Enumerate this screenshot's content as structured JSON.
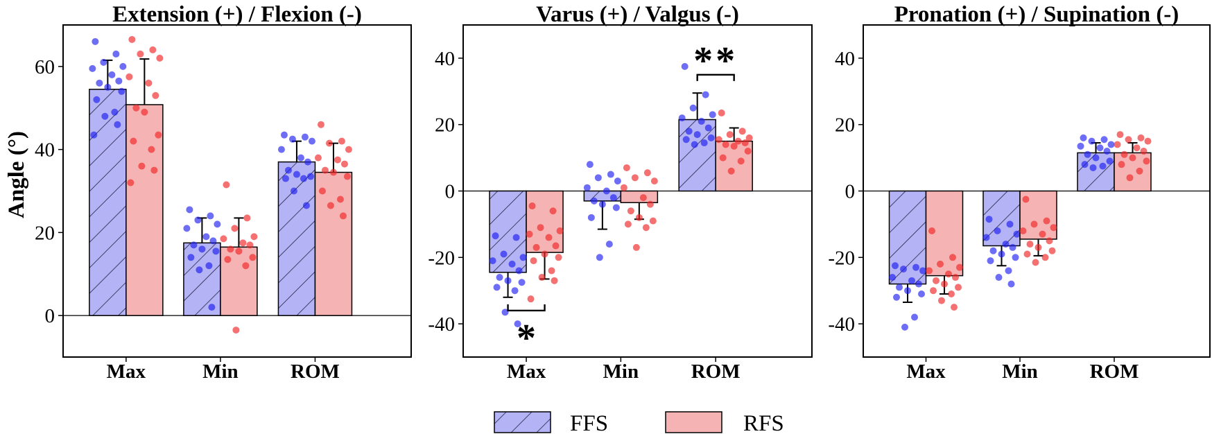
{
  "colors": {
    "ffs_fill": "#b3b3f5",
    "rfs_fill": "#f5b3b3",
    "ffs_dot": "#1f1ff0",
    "rfs_dot": "#f02525",
    "edge": "#000000"
  },
  "legend": [
    {
      "name": "FFS",
      "pattern": "hatched"
    },
    {
      "name": "RFS",
      "pattern": "solid"
    }
  ],
  "chart_data": [
    {
      "type": "bar",
      "title": "Extension (+) / Flexion (-)",
      "ylabel": "Angle (°)",
      "xlabel": "",
      "ylim": [
        -10,
        70
      ],
      "yticks": [
        0,
        20,
        40,
        60
      ],
      "categories": [
        "Max",
        "Min",
        "ROM"
      ],
      "series": [
        {
          "name": "FFS",
          "values": [
            54.5,
            17.5,
            37
          ],
          "errors": [
            7,
            6,
            5
          ],
          "points": [
            [
              66,
              63,
              61,
              60,
              59.5,
              58,
              56.5,
              56,
              55,
              54,
              52,
              49,
              48,
              46,
              43.5
            ],
            [
              25.5,
              24,
              23,
              22,
              21,
              19,
              18,
              17,
              16,
              15.5,
              14,
              12,
              11,
              2
            ],
            [
              43.5,
              43,
              42.5,
              42,
              40,
              38,
              37,
              35,
              34,
              33.5,
              33,
              33,
              30,
              26.5
            ]
          ]
        },
        {
          "name": "RFS",
          "values": [
            50.8,
            16.5,
            34.5
          ],
          "errors": [
            11,
            7,
            7
          ],
          "points": [
            [
              66.5,
              64,
              63,
              62,
              57.5,
              56,
              53,
              50,
              49,
              43.5,
              42,
              40,
              36,
              35,
              32
            ],
            [
              31.5,
              23.5,
              21,
              19,
              18.5,
              17.5,
              17,
              16,
              15.5,
              14,
              13.5,
              12,
              -3.5
            ],
            [
              46,
              42,
              41.5,
              40,
              38,
              37.5,
              36.5,
              35,
              34.5,
              33.5,
              30,
              28,
              26.5,
              24
            ]
          ]
        }
      ],
      "significance": []
    },
    {
      "type": "bar",
      "title": "Varus (+) / Valgus (-)",
      "xlabel": "",
      "ylim": [
        -50,
        50
      ],
      "yticks": [
        -40,
        -20,
        0,
        20,
        40
      ],
      "categories": [
        "Max",
        "Min",
        "ROM"
      ],
      "series": [
        {
          "name": "FFS",
          "values": [
            -24.5,
            -3,
            21.5
          ],
          "errors": [
            7.5,
            8.5,
            8
          ],
          "points": [
            [
              -13.5,
              -14,
              -19,
              -20,
              -21,
              -22,
              -24,
              -26,
              -27,
              -27.5,
              -29,
              -30,
              -36.5,
              -40
            ],
            [
              8,
              5,
              4,
              3,
              1,
              0,
              -2,
              -3,
              -4,
              -5,
              -8,
              -16,
              -20
            ],
            [
              37.5,
              29,
              25,
              23,
              22,
              21,
              19,
              18,
              17,
              16,
              15.5,
              14.5,
              14
            ]
          ]
        },
        {
          "name": "RFS",
          "values": [
            -18.5,
            -3.5,
            15
          ],
          "errors": [
            8,
            5,
            4
          ],
          "points": [
            [
              -4.5,
              -6,
              -11,
              -12,
              -13,
              -14,
              -16.5,
              -17,
              -19,
              -20,
              -21,
              -24,
              -26,
              -27,
              -32.5
            ],
            [
              7,
              5.5,
              4,
              3,
              1,
              -2,
              -4,
              -6,
              -8,
              -9,
              -10,
              -11,
              -17
            ],
            [
              23.5,
              18,
              17,
              16,
              15.5,
              15,
              14.5,
              14,
              13.5,
              12,
              10,
              9,
              6
            ]
          ]
        }
      ],
      "significance": [
        {
          "category": "Max",
          "label": "*",
          "position": "below"
        },
        {
          "category": "ROM",
          "label": "**",
          "position": "above"
        }
      ]
    },
    {
      "type": "bar",
      "title": "Pronation (+) / Supination (-)",
      "xlabel": "",
      "ylim": [
        -50,
        50
      ],
      "yticks": [
        -40,
        -20,
        0,
        20,
        40
      ],
      "categories": [
        "Max",
        "Min",
        "ROM"
      ],
      "series": [
        {
          "name": "FFS",
          "values": [
            -28,
            -16.5,
            11.5
          ],
          "errors": [
            5.5,
            6,
            3
          ],
          "points": [
            [
              -22.5,
              -23,
              -23.5,
              -24,
              -26,
              -27,
              -28,
              -29,
              -30,
              -31,
              -32,
              -38,
              -41
            ],
            [
              -8.5,
              -10,
              -12,
              -13,
              -14,
              -16,
              -17,
              -18,
              -19,
              -20,
              -21,
              -24,
              -26,
              -28
            ],
            [
              16,
              15.5,
              15,
              14,
              13.5,
              13,
              12,
              11,
              10,
              9,
              8,
              7.5,
              7
            ]
          ]
        },
        {
          "name": "RFS",
          "values": [
            -25.5,
            -14.5,
            11.5
          ],
          "errors": [
            5.5,
            5,
            3
          ],
          "points": [
            [
              -12,
              -20,
              -22,
              -23,
              -24,
              -25,
              -26,
              -27,
              -28,
              -29,
              -30,
              -31,
              -33,
              -35
            ],
            [
              -2.5,
              -9,
              -10,
              -11,
              -12,
              -13,
              -15,
              -16,
              -17,
              -18,
              -19,
              -20,
              -21.5
            ],
            [
              17,
              16,
              15.5,
              15,
              14,
              13,
              12,
              11,
              10,
              9,
              8,
              6,
              4
            ]
          ]
        }
      ],
      "significance": []
    }
  ]
}
